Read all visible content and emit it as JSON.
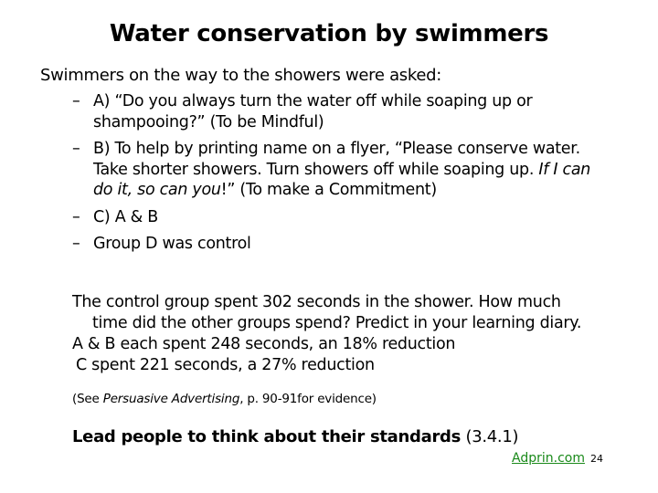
{
  "title": "Water conservation by swimmers",
  "intro": "Swimmers on the way to the showers were asked:",
  "bullets": {
    "dash": "–",
    "a": {
      "line1": "A) “Do you always turn the water off while soaping up or",
      "line2": "shampooing?” (To be Mindful)"
    },
    "b": {
      "line1": "B) To help by printing name on a flyer, “Please conserve water.",
      "line2": "Take shorter showers. Turn showers off while soaping up.",
      "italic1": "If I can",
      "italic2": "do it, so can you",
      "line3_end": "!” (To make a Commitment)"
    },
    "c": "C) A & B",
    "d": "Group D was control"
  },
  "results": {
    "line1": "The control group spent 302 seconds in the shower. How much",
    "line2": "time did the other groups spend? Predict in your learning diary.",
    "line3": "A & B each spent 248 seconds, an 18% reduction",
    "line4": "C spent 221 seconds, a 27% reduction"
  },
  "source": {
    "prefix": "(See ",
    "book": "Persuasive Advertising",
    "suffix": ", p. 90-91for evidence)"
  },
  "lead": {
    "bold": "Lead people to think about their standards",
    "ref": " (3.4.1)"
  },
  "footer": {
    "link": "Adprin.com",
    "page": "24"
  }
}
